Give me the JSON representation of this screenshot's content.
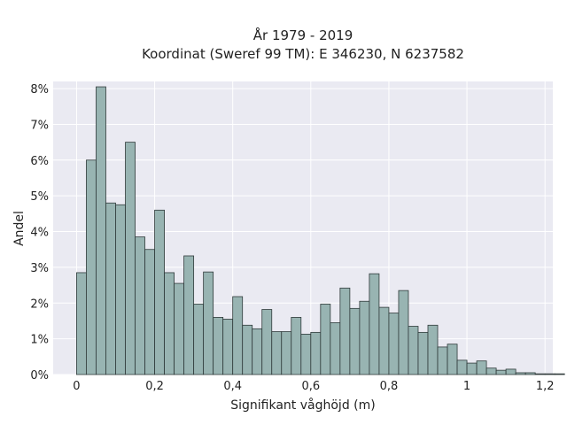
{
  "chart_data": {
    "type": "bar",
    "title_lines": [
      "År 1979 - 2019",
      "Koordinat (Sweref 99 TM): E 346230, N 6237582"
    ],
    "xlabel": "Signifikant våghöjd (m)",
    "ylabel": "Andel",
    "xlim": [
      -0.06,
      1.22
    ],
    "ylim": [
      0,
      8.2
    ],
    "grid": true,
    "x_ticks": [
      0,
      0.2,
      0.4,
      0.6,
      0.8,
      1.0,
      1.2
    ],
    "x_tick_labels": [
      "0",
      "0,2",
      "0,4",
      "0,6",
      "0,8",
      "1",
      "1,2"
    ],
    "y_ticks": [
      0,
      1,
      2,
      3,
      4,
      5,
      6,
      7,
      8
    ],
    "y_tick_labels": [
      "0%",
      "1%",
      "2%",
      "3%",
      "4%",
      "5%",
      "6%",
      "7%",
      "8%"
    ],
    "bin_start": 0,
    "bin_width": 0.025,
    "values": [
      2.85,
      6.0,
      8.05,
      4.8,
      4.75,
      6.5,
      3.85,
      3.5,
      4.6,
      2.85,
      2.55,
      3.32,
      1.97,
      2.87,
      1.6,
      1.55,
      2.18,
      1.38,
      1.28,
      1.82,
      1.2,
      1.2,
      1.6,
      1.13,
      1.18,
      1.97,
      1.45,
      2.42,
      1.85,
      2.05,
      2.82,
      1.88,
      1.72,
      2.35,
      1.35,
      1.18,
      1.38,
      0.77,
      0.85,
      0.4,
      0.32,
      0.38,
      0.18,
      0.12,
      0.15,
      0.05,
      0.05,
      0.02,
      0.02,
      0.02
    ],
    "colors": {
      "bar_fill": "#98b4b2",
      "bar_edge": "#2f3a3a",
      "plot_bg": "#eaeaf2",
      "grid": "#ffffff"
    }
  }
}
